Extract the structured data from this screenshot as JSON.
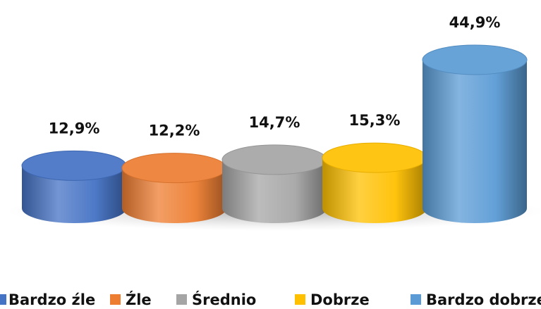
{
  "chart_data": {
    "type": "bar",
    "series": [
      {
        "name": "Bardzo źle",
        "color": "#4472c4",
        "values": [
          12.9
        ],
        "value_labels": [
          "12,9%"
        ]
      },
      {
        "name": "Źle",
        "color": "#ed7d31",
        "values": [
          12.2
        ],
        "value_labels": [
          "12,2%"
        ]
      },
      {
        "name": "Średnio",
        "color": "#a5a5a5",
        "values": [
          14.7
        ],
        "value_labels": [
          "14,7%"
        ]
      },
      {
        "name": "Dobrze",
        "color": "#ffc000",
        "values": [
          15.3
        ],
        "value_labels": [
          "15,3%"
        ]
      },
      {
        "name": "Bardzo dobrze",
        "color": "#5b9bd5",
        "values": [
          44.9
        ],
        "value_labels": [
          "44,9%"
        ]
      }
    ]
  }
}
